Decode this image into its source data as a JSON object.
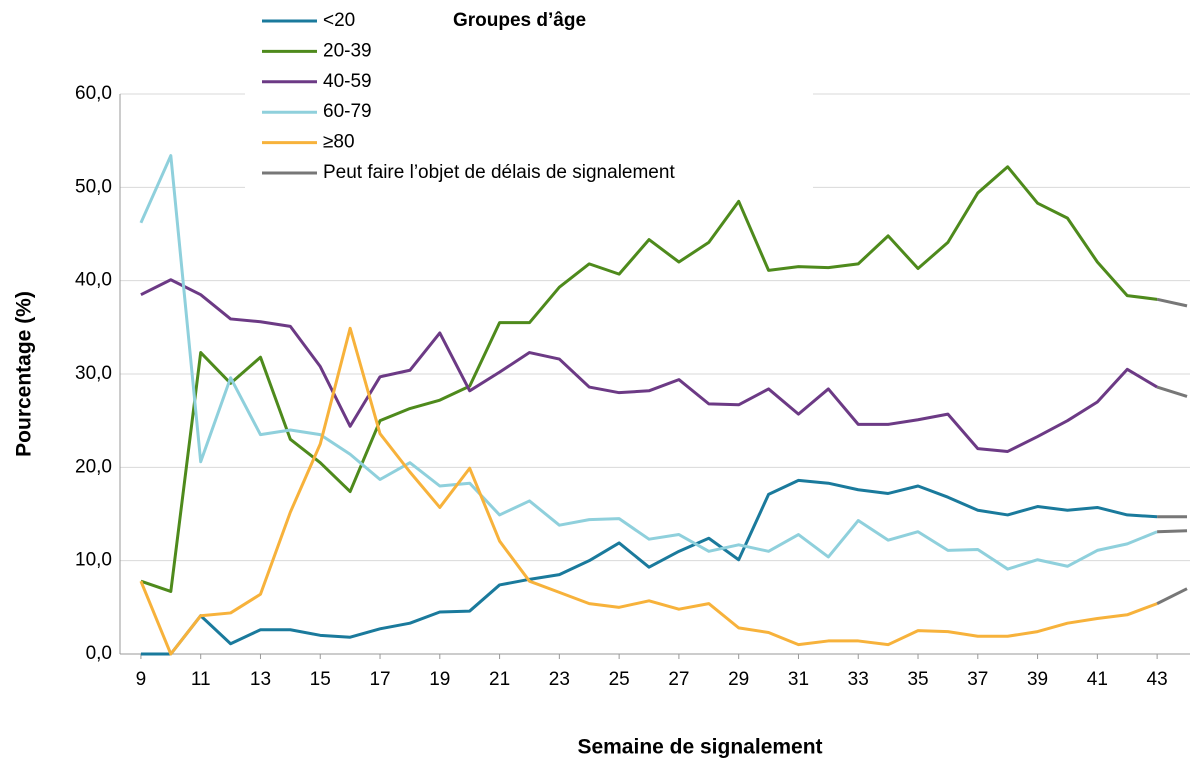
{
  "chart_data": {
    "type": "line",
    "xlabel": "Semaine de signalement",
    "ylabel": "Pourcentage (%)",
    "legend_title": "Groupes d’âge",
    "x": [
      9,
      10,
      11,
      12,
      13,
      14,
      15,
      16,
      17,
      18,
      19,
      20,
      21,
      22,
      23,
      24,
      25,
      26,
      27,
      28,
      29,
      30,
      31,
      32,
      33,
      34,
      35,
      36,
      37,
      38,
      39,
      40,
      41,
      42,
      43,
      44
    ],
    "series": [
      {
        "name": "<20",
        "color": "#1a7a9c",
        "values": [
          0,
          0,
          4.1,
          1.1,
          2.6,
          2.6,
          2.0,
          1.8,
          2.7,
          3.3,
          4.5,
          4.6,
          7.4,
          8.0,
          8.5,
          10.0,
          11.9,
          9.3,
          11.0,
          12.4,
          10.1,
          17.1,
          18.6,
          18.3,
          17.6,
          17.2,
          18.0,
          16.8,
          15.4,
          14.9,
          15.8,
          15.4,
          15.7,
          14.9,
          14.7,
          14.7
        ]
      },
      {
        "name": "20-39",
        "color": "#4e8a1c",
        "values": [
          7.8,
          6.7,
          32.3,
          29.0,
          31.8,
          23.0,
          20.5,
          17.4,
          25.0,
          26.3,
          27.2,
          28.7,
          35.5,
          35.5,
          39.3,
          41.8,
          40.7,
          44.4,
          42.0,
          44.1,
          48.5,
          41.1,
          41.5,
          41.4,
          41.8,
          44.8,
          41.3,
          44.1,
          49.4,
          52.2,
          48.3,
          46.7,
          42.0,
          38.4,
          38.0,
          37.3
        ]
      },
      {
        "name": "40-59",
        "color": "#6c3a85",
        "values": [
          38.5,
          40.1,
          38.5,
          35.9,
          35.6,
          35.1,
          30.8,
          24.4,
          29.7,
          30.4,
          34.4,
          28.2,
          30.2,
          32.3,
          31.6,
          28.6,
          28.0,
          28.2,
          29.4,
          26.8,
          26.7,
          28.4,
          25.7,
          28.4,
          24.6,
          24.6,
          25.1,
          25.7,
          22.0,
          21.7,
          23.3,
          25.0,
          27.0,
          30.5,
          28.6,
          27.6
        ]
      },
      {
        "name": "60-79",
        "color": "#8fd0dc",
        "values": [
          46.2,
          53.4,
          20.6,
          29.6,
          23.5,
          24.0,
          23.5,
          21.4,
          18.7,
          20.5,
          18.0,
          18.3,
          14.9,
          16.4,
          13.8,
          14.4,
          14.5,
          12.3,
          12.8,
          11.0,
          11.7,
          11.0,
          12.8,
          10.4,
          14.3,
          12.2,
          13.1,
          11.1,
          11.2,
          9.1,
          10.1,
          9.4,
          11.1,
          11.8,
          13.1,
          13.2
        ]
      },
      {
        "name": "≥80",
        "color": "#f7b23b",
        "values": [
          7.8,
          0,
          4.1,
          4.4,
          6.4,
          15.2,
          22.5,
          34.9,
          23.6,
          19.5,
          15.7,
          19.9,
          12.1,
          7.8,
          6.6,
          5.4,
          5.0,
          5.7,
          4.8,
          5.4,
          2.8,
          2.3,
          1.0,
          1.4,
          1.4,
          1.0,
          2.5,
          2.4,
          1.9,
          1.9,
          2.4,
          3.3,
          3.8,
          4.2,
          5.4,
          7.0
        ]
      }
    ],
    "delay": {
      "name": "Peut faire l’objet de délais de signalement",
      "color": "#777777",
      "x": [
        43,
        44
      ]
    },
    "xlim": [
      8.3,
      44.1
    ],
    "xticks": [
      9,
      11,
      13,
      15,
      17,
      19,
      21,
      23,
      25,
      27,
      29,
      31,
      33,
      35,
      37,
      39,
      41,
      43
    ],
    "ylim": [
      0,
      60
    ],
    "yticks": [
      {
        "value": 0,
        "label": "0,0"
      },
      {
        "value": 10,
        "label": "10,0"
      },
      {
        "value": 20,
        "label": "20,0"
      },
      {
        "value": 30,
        "label": "30,0"
      },
      {
        "value": 40,
        "label": "40,0"
      },
      {
        "value": 50,
        "label": "50,0"
      },
      {
        "value": 60,
        "label": "60,0"
      }
    ],
    "grid": true
  }
}
